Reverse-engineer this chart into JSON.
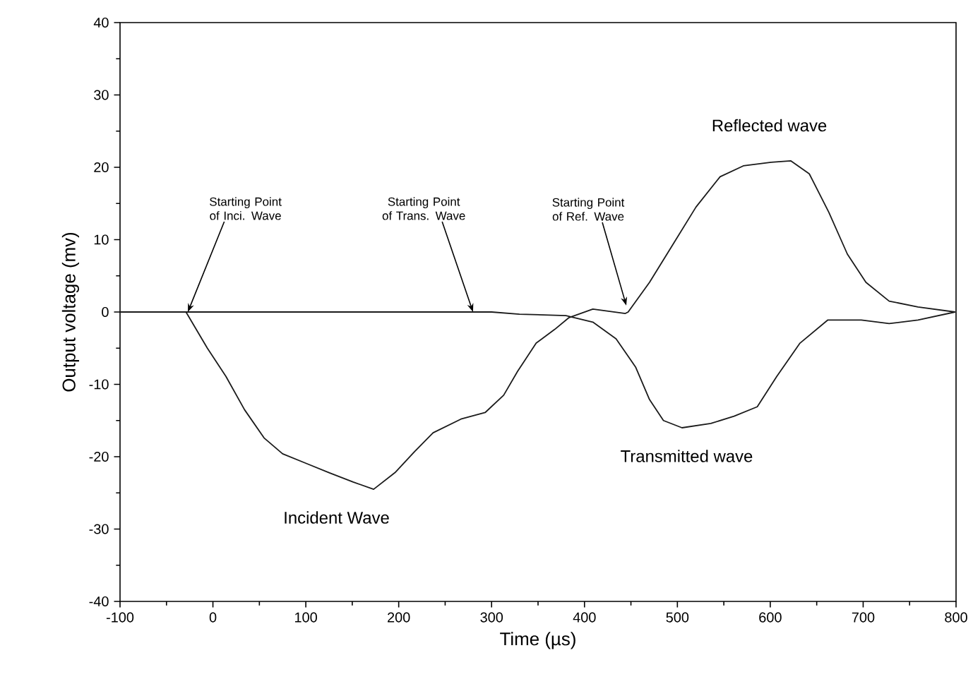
{
  "chart_data": {
    "type": "line",
    "xlabel": "Time (µs)",
    "ylabel": "Output voltage (mv)",
    "xlim": [
      -100,
      800
    ],
    "ylim": [
      -40,
      40
    ],
    "xticks": [
      -100,
      0,
      100,
      200,
      300,
      400,
      500,
      600,
      700,
      800
    ],
    "yticks": [
      -40,
      -30,
      -20,
      -10,
      0,
      10,
      20,
      30,
      40
    ],
    "grid": false,
    "marker": "none",
    "line_style": "solid",
    "series": [
      {
        "color": "#1a1a1a",
        "x": [
          -100,
          -60,
          -29,
          -6,
          14,
          34,
          55,
          75,
          100,
          125,
          151,
          173,
          196,
          217,
          237,
          267,
          293,
          313,
          328,
          348,
          368,
          383,
          409,
          444,
          447,
          470,
          495,
          520,
          546,
          571,
          601,
          622,
          642,
          663,
          683,
          703,
          728,
          759,
          799
        ],
        "values": [
          0,
          0,
          0,
          -5.0,
          -8.9,
          -13.5,
          -17.4,
          -19.6,
          -20.9,
          -22.2,
          -23.5,
          -24.5,
          -22.2,
          -19.3,
          -16.7,
          -14.8,
          -13.9,
          -11.5,
          -8.2,
          -4.3,
          -2.4,
          -0.8,
          0.4,
          -0.2,
          0,
          4.1,
          9.3,
          14.5,
          18.7,
          20.2,
          20.7,
          20.9,
          19.1,
          13.8,
          8.0,
          4.1,
          1.5,
          0.7,
          0
        ]
      },
      {
        "color": "#1a1a1a",
        "x": [
          -100,
          0,
          100,
          200,
          300,
          330,
          380,
          409,
          434,
          455,
          470,
          485,
          505,
          536,
          561,
          586,
          607,
          632,
          662,
          698,
          728,
          759,
          799
        ],
        "values": [
          0,
          0,
          0,
          0,
          0,
          -0.3,
          -0.5,
          -1.4,
          -3.7,
          -7.6,
          -12.1,
          -15.0,
          -16.0,
          -15.4,
          -14.4,
          -13.1,
          -8.9,
          -4.3,
          -1.1,
          -1.1,
          -1.6,
          -1.1,
          0
        ]
      }
    ],
    "annotations": [
      {
        "text": "Starting Point of Inci. Wave",
        "x": -27,
        "y": 0
      },
      {
        "text": "Starting Point of Trans. Wave",
        "x": 280,
        "y": 0
      },
      {
        "text": "Starting Point of Ref. Wave",
        "x": 445,
        "y": 0.9
      },
      "Incident Wave",
      "Reflected wave",
      "Transmitted wave"
    ]
  }
}
